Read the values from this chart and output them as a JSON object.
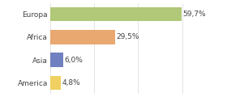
{
  "categories": [
    "America",
    "Asia",
    "Africa",
    "Europa"
  ],
  "values": [
    4.8,
    6.0,
    29.5,
    59.7
  ],
  "labels": [
    "4,8%",
    "6,0%",
    "29,5%",
    "59,7%"
  ],
  "bar_colors": [
    "#f0d060",
    "#7080c0",
    "#e8a870",
    "#b0c878"
  ],
  "xlim": [
    0,
    68
  ],
  "background_color": "#ffffff",
  "label_fontsize": 6.5,
  "tick_fontsize": 6.5,
  "bar_height": 0.62,
  "grid_ticks": [
    0,
    20,
    40,
    60
  ],
  "grid_color": "#d8d8d8"
}
